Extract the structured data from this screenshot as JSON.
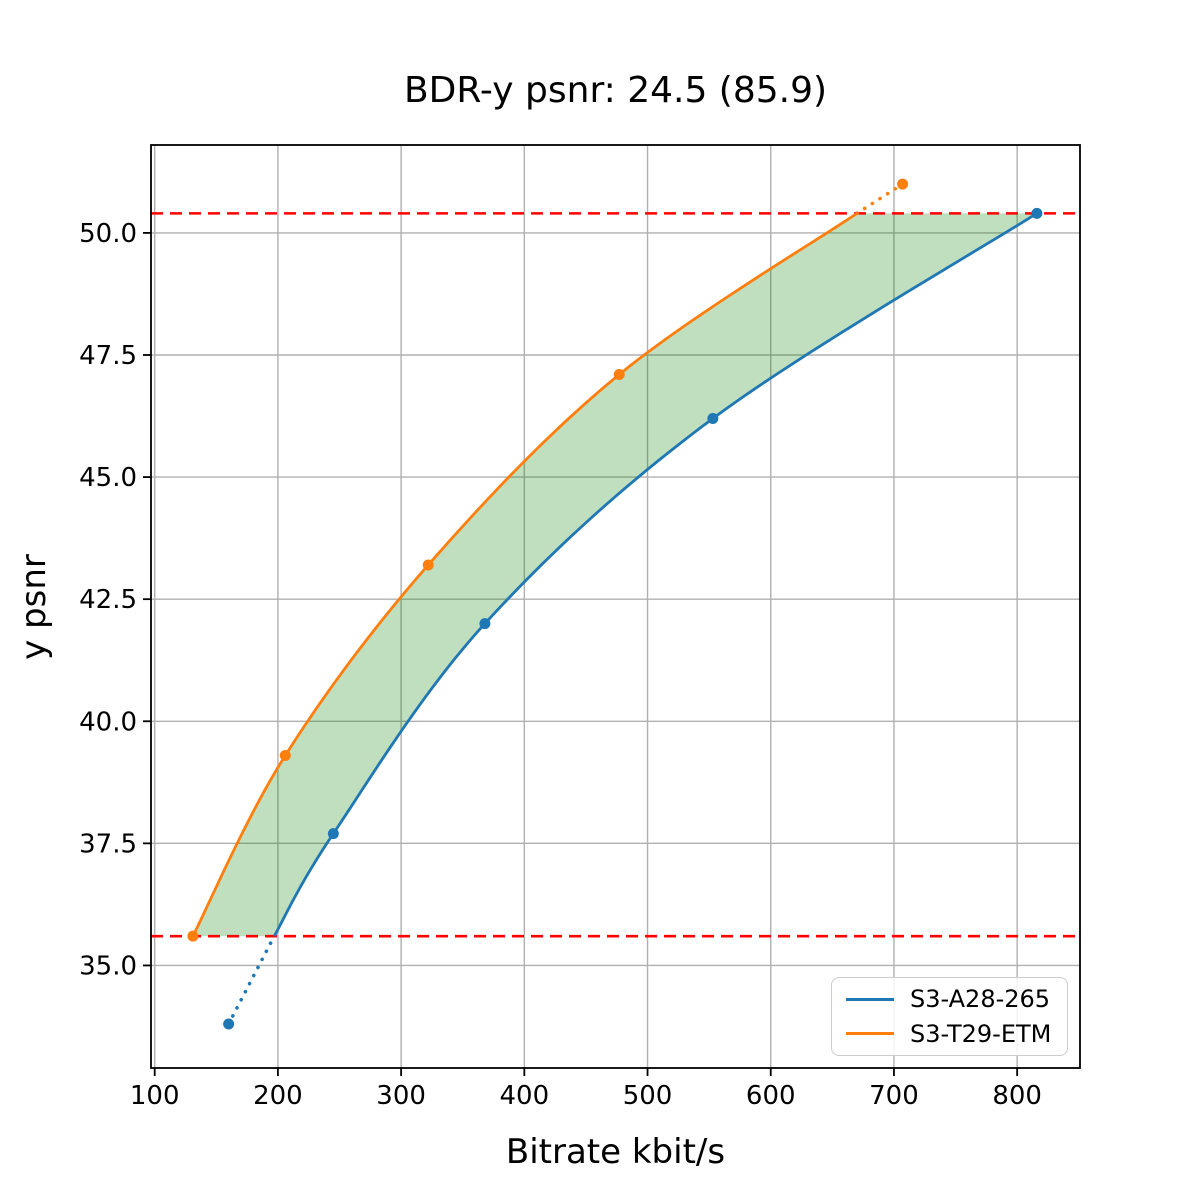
{
  "chart_data": {
    "type": "line",
    "title": "BDR-y psnr: 24.5 (85.9)",
    "xlabel": "Bitrate kbit/s",
    "ylabel": "y psnr",
    "xlim": [
      97,
      851
    ],
    "ylim": [
      32.9,
      51.8
    ],
    "x_ticks": [
      100,
      200,
      300,
      400,
      500,
      600,
      700,
      800
    ],
    "y_ticks": [
      35.0,
      37.5,
      40.0,
      42.5,
      45.0,
      47.5,
      50.0
    ],
    "y_tick_labels": [
      "35.0",
      "37.5",
      "40.0",
      "42.5",
      "45.0",
      "47.5",
      "50.0"
    ],
    "grid": true,
    "grid_color": "#b0b0b0",
    "legend_position": "lower right",
    "series": [
      {
        "name": "S3-A28-265",
        "color": "#1f77b4",
        "points": [
          [
            160,
            33.8
          ],
          [
            245,
            37.7
          ],
          [
            368,
            42.0
          ],
          [
            553,
            46.2
          ],
          [
            816,
            50.4
          ]
        ],
        "solid_curve": [
          [
            197,
            35.6
          ],
          [
            245,
            37.7
          ],
          [
            368,
            42.0
          ],
          [
            553,
            46.2
          ],
          [
            816,
            50.4
          ]
        ],
        "dotted_segment": [
          [
            160,
            33.8
          ],
          [
            197,
            35.6
          ]
        ]
      },
      {
        "name": "S3-T29-ETM",
        "color": "#ff7f0e",
        "points": [
          [
            131,
            35.6
          ],
          [
            206,
            39.3
          ],
          [
            322,
            43.2
          ],
          [
            477,
            47.1
          ],
          [
            707,
            51.0
          ]
        ],
        "solid_curve": [
          [
            131,
            35.6
          ],
          [
            206,
            39.3
          ],
          [
            322,
            43.2
          ],
          [
            477,
            47.1
          ],
          [
            670,
            50.4
          ]
        ],
        "dotted_segment": [
          [
            670,
            50.4
          ],
          [
            707,
            51.0
          ]
        ]
      }
    ],
    "hlines": [
      {
        "y": 50.4,
        "color": "#ff0000",
        "style": "dashed"
      },
      {
        "y": 35.6,
        "color": "#ff0000",
        "style": "dashed"
      }
    ],
    "fill_between": {
      "color": "#008000",
      "opacity": 0.25,
      "upper_corner": [
        816,
        50.4
      ],
      "note": "shaded region between the two curves bounded by the red dashed lines"
    }
  }
}
